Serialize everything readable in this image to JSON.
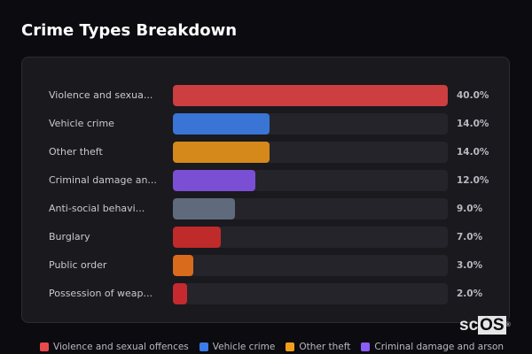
{
  "header": {
    "title": "Crime Types Breakdown"
  },
  "chart_data": {
    "type": "bar",
    "orientation": "horizontal",
    "title": "Crime Types Breakdown",
    "xlabel": "",
    "ylabel": "",
    "xlim": [
      0,
      40
    ],
    "grid": false,
    "legend_position": "bottom",
    "categories": [
      "Violence and sexual offences",
      "Vehicle crime",
      "Other theft",
      "Criminal damage and arson",
      "Anti-social behaviour",
      "Burglary",
      "Public order",
      "Possession of weapons"
    ],
    "display_labels": [
      "Violence and sexua...",
      "Vehicle crime",
      "Other theft",
      "Criminal damage an...",
      "Anti-social behavi...",
      "Burglary",
      "Public order",
      "Possession of weap..."
    ],
    "values": [
      40.0,
      14.0,
      14.0,
      12.0,
      9.0,
      7.0,
      3.0,
      2.0
    ],
    "value_labels": [
      "40.0%",
      "14.0%",
      "14.0%",
      "12.0%",
      "9.0%",
      "7.0%",
      "3.0%",
      "2.0%"
    ],
    "colors": [
      "#cc3e40",
      "#3a74d4",
      "#d4891a",
      "#7b4fd4",
      "#5f6b7c",
      "#bf2a2a",
      "#d96b1c",
      "#c62a2f"
    ]
  },
  "legend": [
    {
      "label": "Violence and sexual offences",
      "color": "#e84a4c"
    },
    {
      "label": "Vehicle crime",
      "color": "#3b7be8"
    },
    {
      "label": "Other theft",
      "color": "#f0a018"
    },
    {
      "label": "Criminal damage and arson",
      "color": "#8b5cf6"
    }
  ],
  "watermark": {
    "prefix": "sc",
    "boxed": "OS",
    "mark": "®"
  }
}
